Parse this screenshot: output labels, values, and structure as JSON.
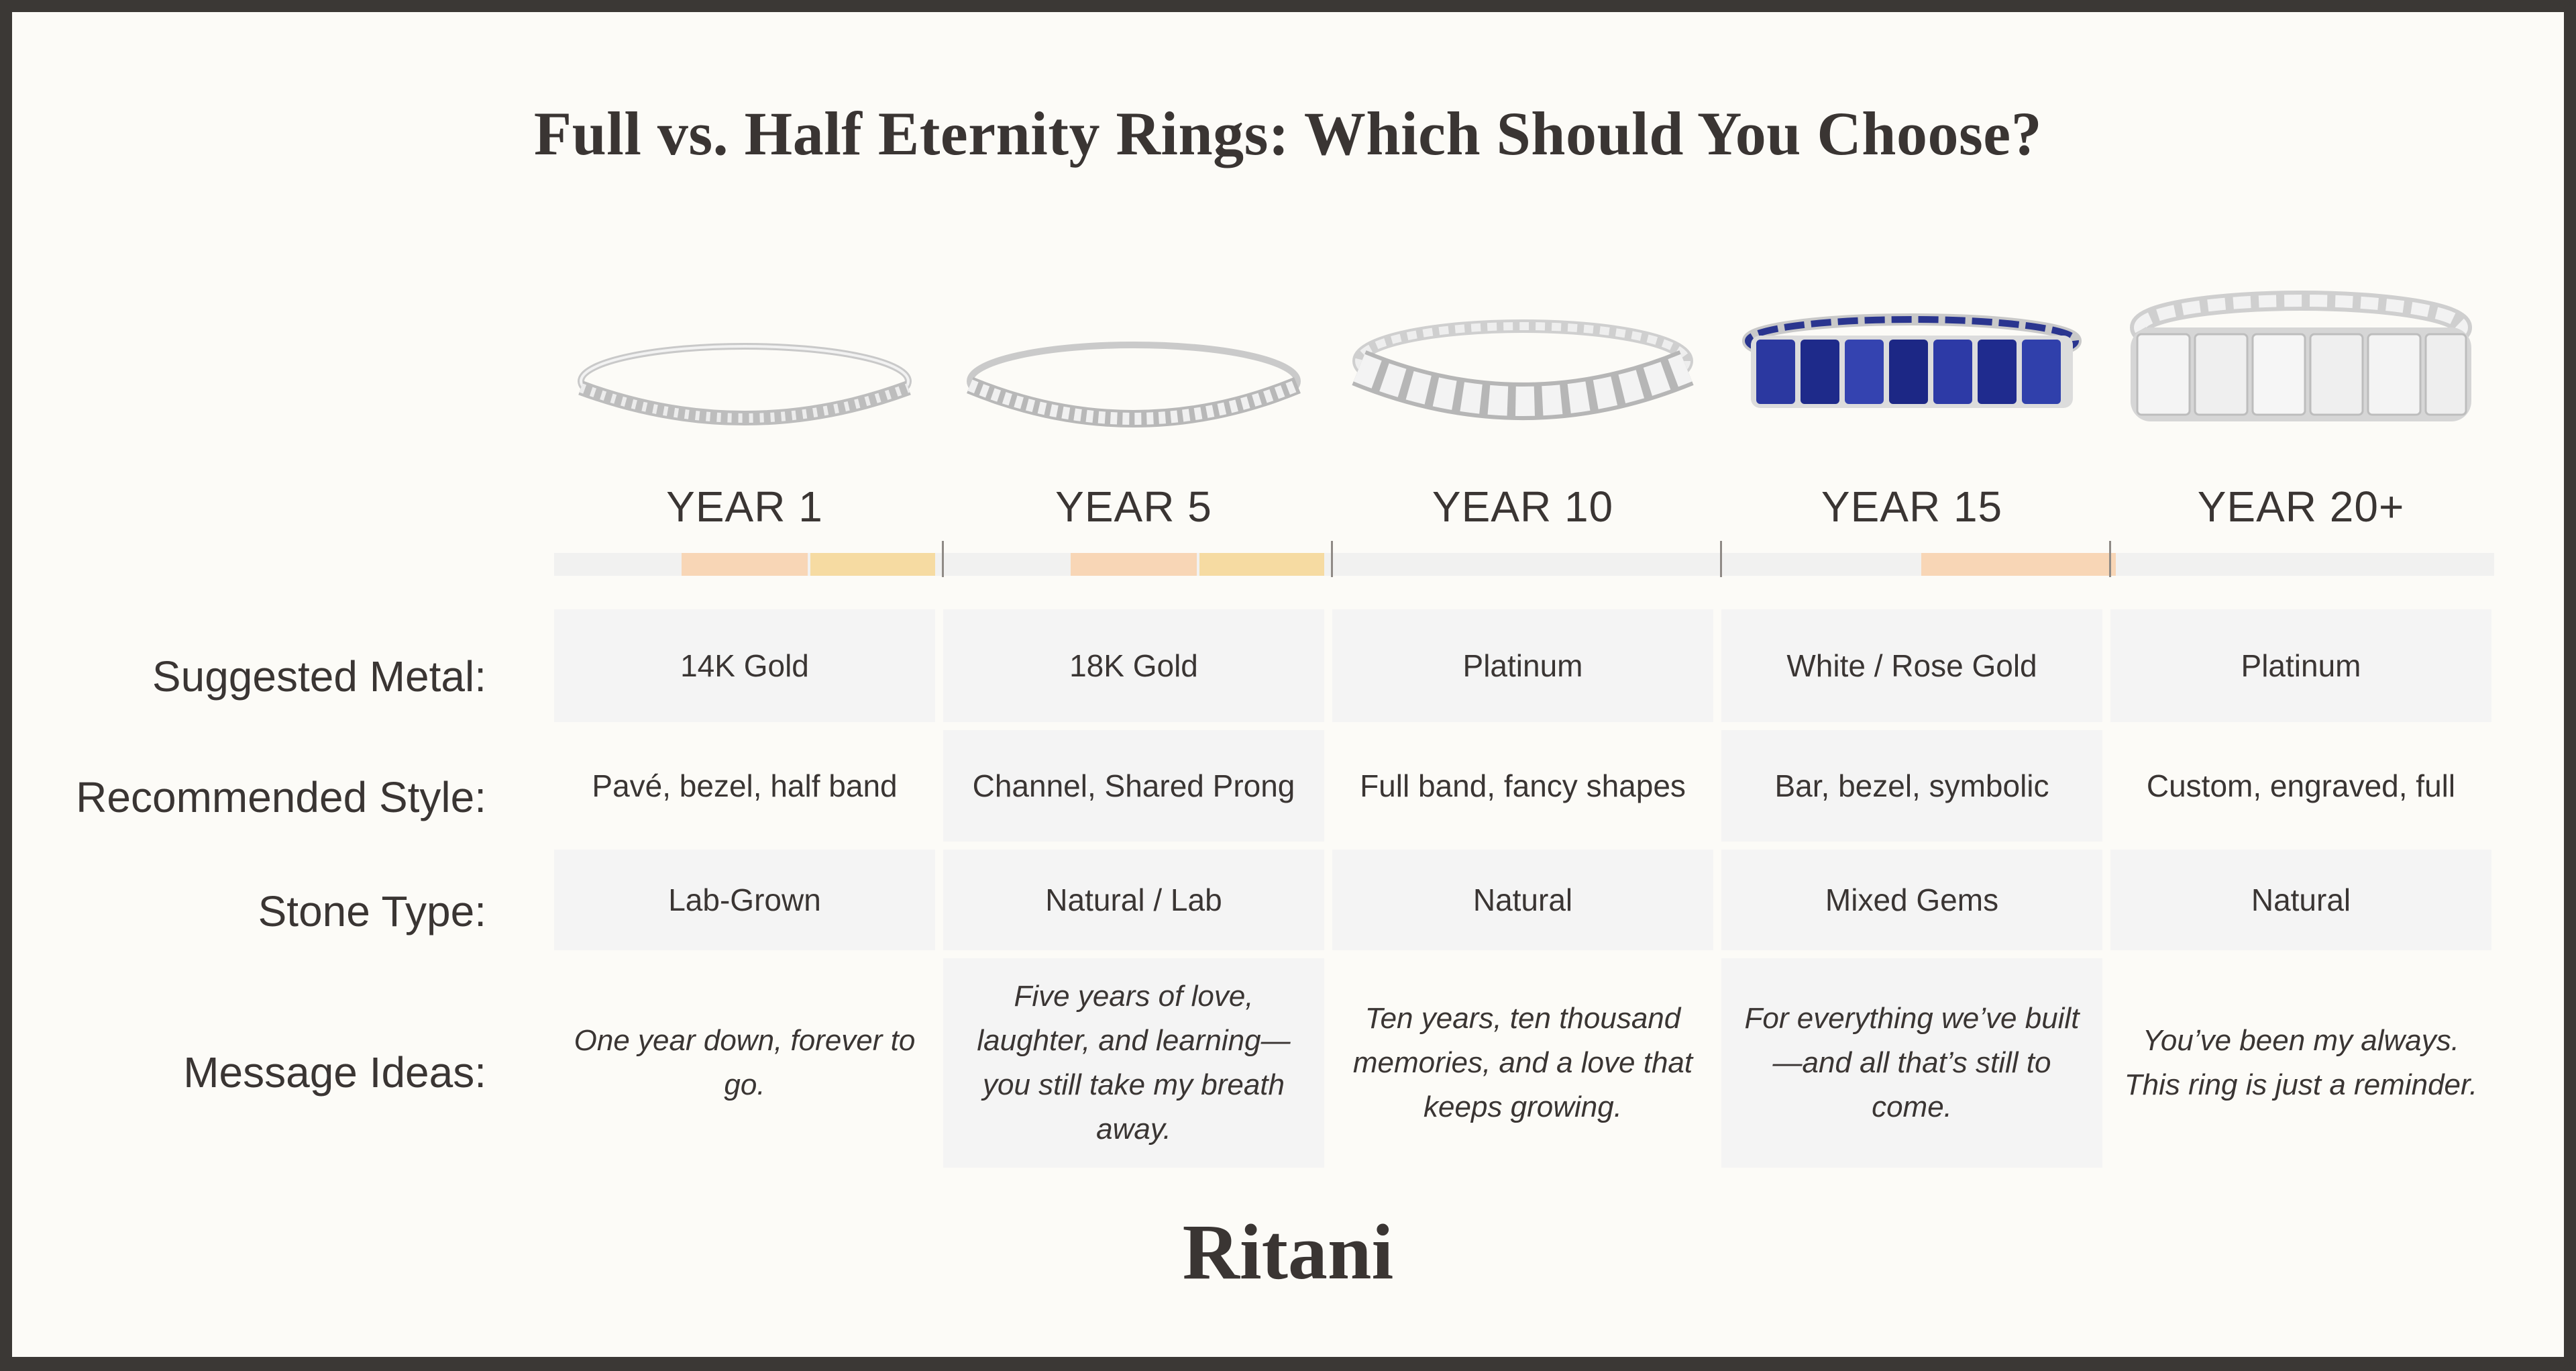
{
  "title": "Full vs. Half Eternity Rings: Which Should You Choose?",
  "brand": "Ritani",
  "colors": {
    "frame": "#3b3835",
    "background": "#fcfbf7",
    "text": "#3a3533",
    "bar_base": "#f1f1f0",
    "bar_peach": "#f8d6b6",
    "bar_gold": "#f6dba2",
    "cell_shade": "#f4f4f4",
    "sapphire": "#1e2a8a"
  },
  "columns": [
    {
      "year": "YEAR 1",
      "image": "ring-icon-thin-pave-half"
    },
    {
      "year": "YEAR 5",
      "image": "ring-icon-pave-full"
    },
    {
      "year": "YEAR 10",
      "image": "ring-icon-emerald-cut-eternity"
    },
    {
      "year": "YEAR 15",
      "image": "ring-icon-sapphire-eternity"
    },
    {
      "year": "YEAR 20+",
      "image": "ring-icon-asscher-eternity"
    }
  ],
  "rows": [
    {
      "label": "Suggested Metal:",
      "values": [
        "14K Gold",
        "18K Gold",
        "Platinum",
        "White / Rose Gold",
        "Platinum"
      ]
    },
    {
      "label": "Recommended Style:",
      "values": [
        "Pavé, bezel, half band",
        "Channel, Shared Prong",
        "Full band, fancy shapes",
        "Bar, bezel, symbolic",
        "Custom, engraved, full"
      ]
    },
    {
      "label": "Stone Type:",
      "values": [
        "Lab-Grown",
        "Natural / Lab",
        "Natural",
        "Mixed Gems",
        "Natural"
      ]
    },
    {
      "label": "Message Ideas:",
      "values": [
        "One year down, forever to go.",
        "Five years of love, laughter, and learning—you still take my breath away.",
        "Ten years, ten thousand memories, and a love that keeps growing.",
        "For everything we’ve built—and all that’s still to come.",
        "You’ve been my always. This ring is just a reminder."
      ]
    }
  ]
}
